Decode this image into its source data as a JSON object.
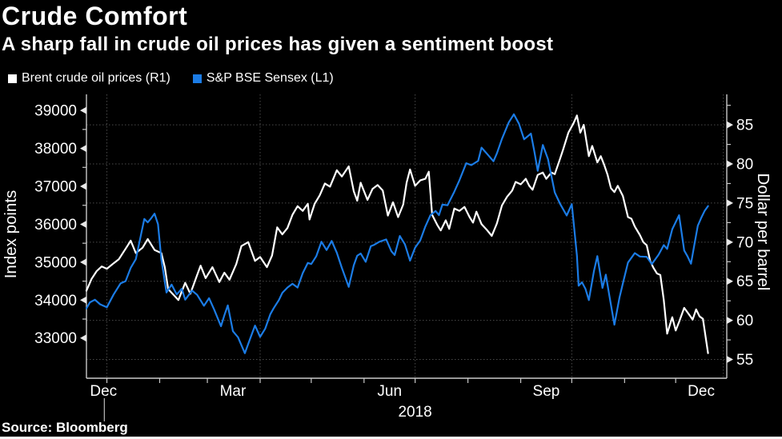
{
  "header": {
    "title": "Crude Comfort",
    "subtitle": "A sharp fall in crude oil prices has given a sentiment boost"
  },
  "legend": [
    {
      "label": "Brent crude oil prices (R1)",
      "color": "#ffffff"
    },
    {
      "label": "S&P BSE Sensex (L1)",
      "color": "#1b7ce6"
    }
  ],
  "source": "Source:  Bloomberg",
  "colors": {
    "background": "#000000",
    "grid": "#4a4a4a",
    "axis": "#c9c9c9",
    "tick": "#e8e8e8",
    "text": "#ffffff",
    "brent": "#ffffff",
    "sensex": "#1b7ce6"
  },
  "chart_data": {
    "type": "line",
    "title": "Crude Comfort",
    "subtitle": "A sharp fall in crude oil prices has given a sentiment boost",
    "grid": "dotted, horizontal at right-axis majors, vertical at quarter starts",
    "legend_position": "top-left",
    "x_axis": {
      "label": "2018",
      "min_day": 0,
      "max_day": 376,
      "start_date": "2017-12-20",
      "end_date": "2018-12-19",
      "month_labels": [
        {
          "label": "Dec",
          "day": 10
        },
        {
          "label": "Mar",
          "day": 86
        },
        {
          "label": "Jun",
          "day": 178
        },
        {
          "label": "Sep",
          "day": 270
        },
        {
          "label": "Dec",
          "day": 361
        }
      ],
      "month_tick_days": [
        12,
        43,
        71,
        102,
        132,
        163,
        193,
        224,
        255,
        285,
        316,
        346
      ],
      "gridline_days": [
        12,
        102,
        193,
        285,
        374
      ],
      "year_divider_day": 10.5,
      "year_label": "2018",
      "year_label_day": 193
    },
    "left_axis": {
      "title": "Index points",
      "min": 31940,
      "max": 39425,
      "ticks": [
        39000,
        38000,
        37000,
        36000,
        35000,
        34000,
        33000
      ],
      "minor_ticks": [
        38500,
        37500,
        36500,
        35500,
        34500,
        33500
      ]
    },
    "right_axis": {
      "title": "Dollar per barrel",
      "min": 52.6,
      "max": 88.9,
      "ticks": [
        85,
        80,
        75,
        70,
        65,
        60,
        55
      ],
      "minor_ticks": [
        87.5,
        82.5,
        77.5,
        72.5,
        67.5,
        62.5,
        57.5
      ]
    },
    "series": [
      {
        "name": "Brent crude oil prices (R1)",
        "axis": "right",
        "unit": "USD per barrel",
        "color": "#ffffff",
        "points": [
          [
            0,
            63.8
          ],
          [
            3,
            65.3
          ],
          [
            6,
            66.3
          ],
          [
            9,
            66.9
          ],
          [
            12,
            66.6
          ],
          [
            16,
            67.3
          ],
          [
            19,
            67.8
          ],
          [
            24,
            69.5
          ],
          [
            26,
            70.2
          ],
          [
            29,
            68.6
          ],
          [
            33,
            69.3
          ],
          [
            36,
            70.4
          ],
          [
            40,
            69.0
          ],
          [
            44,
            68.6
          ],
          [
            46,
            66.8
          ],
          [
            48,
            64.0
          ],
          [
            54,
            62.6
          ],
          [
            58,
            64.8
          ],
          [
            61,
            63.4
          ],
          [
            65,
            65.8
          ],
          [
            67,
            67.0
          ],
          [
            70,
            65.4
          ],
          [
            74,
            66.8
          ],
          [
            78,
            64.9
          ],
          [
            81,
            66.1
          ],
          [
            84,
            65.2
          ],
          [
            88,
            67.2
          ],
          [
            91,
            69.5
          ],
          [
            95,
            70.0
          ],
          [
            99,
            67.6
          ],
          [
            102,
            68.1
          ],
          [
            106,
            66.8
          ],
          [
            109,
            68.3
          ],
          [
            112,
            71.9
          ],
          [
            115,
            71.0
          ],
          [
            118,
            71.8
          ],
          [
            121,
            73.5
          ],
          [
            124,
            74.6
          ],
          [
            127,
            74.0
          ],
          [
            130,
            74.9
          ],
          [
            131,
            72.9
          ],
          [
            134,
            74.9
          ],
          [
            137,
            76.0
          ],
          [
            140,
            77.5
          ],
          [
            143,
            77.1
          ],
          [
            147,
            79.2
          ],
          [
            150,
            78.4
          ],
          [
            154,
            79.7
          ],
          [
            157,
            76.5
          ],
          [
            159,
            75.3
          ],
          [
            161,
            77.6
          ],
          [
            165,
            75.4
          ],
          [
            168,
            76.8
          ],
          [
            171,
            77.3
          ],
          [
            174,
            76.6
          ],
          [
            177,
            73.4
          ],
          [
            180,
            75.1
          ],
          [
            183,
            73.2
          ],
          [
            186,
            74.8
          ],
          [
            188,
            77.6
          ],
          [
            190,
            79.3
          ],
          [
            193,
            77.2
          ],
          [
            196,
            77.9
          ],
          [
            199,
            78.1
          ],
          [
            201,
            79.0
          ],
          [
            203,
            73.5
          ],
          [
            206,
            72.2
          ],
          [
            208,
            71.5
          ],
          [
            211,
            72.8
          ],
          [
            213,
            71.7
          ],
          [
            216,
            74.3
          ],
          [
            219,
            74.0
          ],
          [
            222,
            74.5
          ],
          [
            225,
            73.2
          ],
          [
            227,
            72.5
          ],
          [
            229,
            73.9
          ],
          [
            232,
            72.3
          ],
          [
            235,
            71.6
          ],
          [
            238,
            70.8
          ],
          [
            241,
            72.4
          ],
          [
            244,
            74.7
          ],
          [
            247,
            75.8
          ],
          [
            250,
            76.6
          ],
          [
            252,
            77.7
          ],
          [
            255,
            77.4
          ],
          [
            258,
            78.1
          ],
          [
            260,
            77.2
          ],
          [
            262,
            76.7
          ],
          [
            265,
            78.6
          ],
          [
            268,
            78.9
          ],
          [
            270,
            78.1
          ],
          [
            273,
            78.9
          ],
          [
            275,
            78.7
          ],
          [
            278,
            80.6
          ],
          [
            280,
            81.9
          ],
          [
            283,
            84.0
          ],
          [
            286,
            85.2
          ],
          [
            288,
            86.2
          ],
          [
            290,
            84.0
          ],
          [
            292,
            85.0
          ],
          [
            295,
            81.0
          ],
          [
            297,
            82.3
          ],
          [
            300,
            80.2
          ],
          [
            302,
            81.0
          ],
          [
            304,
            79.9
          ],
          [
            306,
            78.6
          ],
          [
            308,
            76.9
          ],
          [
            310,
            76.4
          ],
          [
            312,
            77.2
          ],
          [
            315,
            75.9
          ],
          [
            318,
            73.2
          ],
          [
            320,
            73.0
          ],
          [
            322,
            72.0
          ],
          [
            325,
            70.9
          ],
          [
            327,
            70.0
          ],
          [
            329,
            69.6
          ],
          [
            331,
            67.6
          ],
          [
            333,
            66.7
          ],
          [
            335,
            66.0
          ],
          [
            337,
            65.8
          ],
          [
            339,
            62.6
          ],
          [
            341,
            58.3
          ],
          [
            344,
            60.4
          ],
          [
            346,
            58.7
          ],
          [
            348,
            59.8
          ],
          [
            351,
            61.6
          ],
          [
            353,
            61.0
          ],
          [
            356,
            60.1
          ],
          [
            358,
            61.4
          ],
          [
            360,
            60.5
          ],
          [
            362,
            60.2
          ],
          [
            365,
            55.8
          ]
        ]
      },
      {
        "name": "S&P BSE Sensex (L1)",
        "axis": "left",
        "unit": "Index points",
        "color": "#1b7ce6",
        "points": [
          [
            0,
            33780
          ],
          [
            2,
            33940
          ],
          [
            5,
            34010
          ],
          [
            8,
            33890
          ],
          [
            12,
            33810
          ],
          [
            16,
            34150
          ],
          [
            20,
            34440
          ],
          [
            23,
            34500
          ],
          [
            26,
            34850
          ],
          [
            29,
            35080
          ],
          [
            31,
            35510
          ],
          [
            34,
            36140
          ],
          [
            36,
            36050
          ],
          [
            38,
            36160
          ],
          [
            40,
            36280
          ],
          [
            42,
            36000
          ],
          [
            44,
            35070
          ],
          [
            47,
            34200
          ],
          [
            50,
            34410
          ],
          [
            53,
            34150
          ],
          [
            56,
            34300
          ],
          [
            58,
            34010
          ],
          [
            62,
            34250
          ],
          [
            65,
            34140
          ],
          [
            69,
            33850
          ],
          [
            72,
            34050
          ],
          [
            75,
            33750
          ],
          [
            79,
            33310
          ],
          [
            81,
            33600
          ],
          [
            83,
            33860
          ],
          [
            86,
            33180
          ],
          [
            89,
            33020
          ],
          [
            93,
            32600
          ],
          [
            96,
            32970
          ],
          [
            99,
            33330
          ],
          [
            102,
            33030
          ],
          [
            105,
            33250
          ],
          [
            108,
            33630
          ],
          [
            110,
            33790
          ],
          [
            113,
            34000
          ],
          [
            115,
            34190
          ],
          [
            118,
            34330
          ],
          [
            121,
            34430
          ],
          [
            124,
            34330
          ],
          [
            127,
            34710
          ],
          [
            130,
            34980
          ],
          [
            132,
            34950
          ],
          [
            135,
            35160
          ],
          [
            138,
            35540
          ],
          [
            141,
            35320
          ],
          [
            144,
            35560
          ],
          [
            147,
            35250
          ],
          [
            150,
            34850
          ],
          [
            154,
            34350
          ],
          [
            157,
            34920
          ],
          [
            159,
            35170
          ],
          [
            161,
            35230
          ],
          [
            164,
            35010
          ],
          [
            167,
            35420
          ],
          [
            169,
            35460
          ],
          [
            172,
            35540
          ],
          [
            176,
            35600
          ],
          [
            179,
            35290
          ],
          [
            181,
            35190
          ],
          [
            184,
            35690
          ],
          [
            187,
            35470
          ],
          [
            190,
            35040
          ],
          [
            193,
            35380
          ],
          [
            196,
            35570
          ],
          [
            199,
            35940
          ],
          [
            202,
            36240
          ],
          [
            205,
            36350
          ],
          [
            207,
            36240
          ],
          [
            209,
            36520
          ],
          [
            212,
            36500
          ],
          [
            216,
            36860
          ],
          [
            219,
            37160
          ],
          [
            223,
            37610
          ],
          [
            226,
            37560
          ],
          [
            230,
            37670
          ],
          [
            232,
            38020
          ],
          [
            235,
            37870
          ],
          [
            239,
            37660
          ],
          [
            241,
            37870
          ],
          [
            244,
            38250
          ],
          [
            248,
            38690
          ],
          [
            251,
            38900
          ],
          [
            254,
            38650
          ],
          [
            257,
            38240
          ],
          [
            261,
            38390
          ],
          [
            263,
            37920
          ],
          [
            265,
            37410
          ],
          [
            268,
            38090
          ],
          [
            271,
            37720
          ],
          [
            275,
            36840
          ],
          [
            278,
            36550
          ],
          [
            282,
            36230
          ],
          [
            285,
            36530
          ],
          [
            288,
            35170
          ],
          [
            289,
            34380
          ],
          [
            291,
            34470
          ],
          [
            293,
            34300
          ],
          [
            295,
            34000
          ],
          [
            298,
            34760
          ],
          [
            300,
            35160
          ],
          [
            303,
            34320
          ],
          [
            305,
            34670
          ],
          [
            307,
            34130
          ],
          [
            310,
            33350
          ],
          [
            313,
            34070
          ],
          [
            315,
            34440
          ],
          [
            318,
            34990
          ],
          [
            322,
            35240
          ],
          [
            325,
            35150
          ],
          [
            329,
            35140
          ],
          [
            332,
            34950
          ],
          [
            336,
            35200
          ],
          [
            339,
            35450
          ],
          [
            341,
            35350
          ],
          [
            344,
            35870
          ],
          [
            348,
            36240
          ],
          [
            351,
            35310
          ],
          [
            353,
            35150
          ],
          [
            355,
            34960
          ],
          [
            357,
            35470
          ],
          [
            359,
            35960
          ],
          [
            361,
            36170
          ],
          [
            363,
            36350
          ],
          [
            365,
            36480
          ]
        ]
      }
    ]
  }
}
